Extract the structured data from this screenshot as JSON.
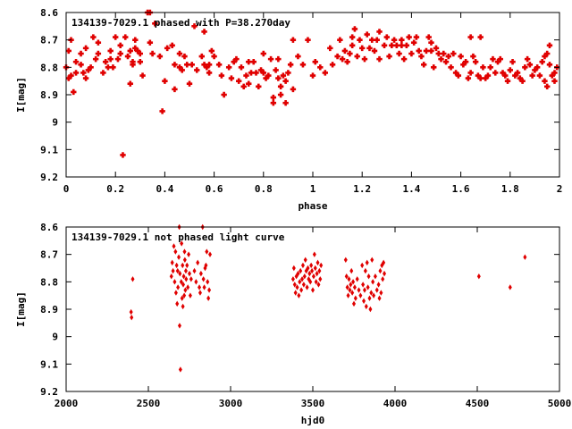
{
  "chart_data": [
    {
      "type": "scatter",
      "title": "134139-7029.1 phased with P=38.270day",
      "xlabel": "phase",
      "ylabel": "I[mag]",
      "xlim": [
        0,
        2
      ],
      "ylim": [
        8.6,
        9.2
      ],
      "y_inverted": true,
      "x_ticks": [
        "0",
        "0.2",
        "0.4",
        "0.6",
        "0.8",
        "1",
        "1.2",
        "1.4",
        "1.6",
        "1.8",
        "2"
      ],
      "y_ticks": [
        "8.6",
        "8.7",
        "8.8",
        "8.9",
        "9",
        "9.1",
        "9.2"
      ],
      "marker": "cross",
      "color": "#e00000",
      "grid": false,
      "points": [
        [
          0.0,
          8.8
        ],
        [
          0.01,
          8.84
        ],
        [
          0.01,
          8.74
        ],
        [
          0.02,
          8.7
        ],
        [
          0.02,
          8.83
        ],
        [
          0.03,
          8.89
        ],
        [
          0.04,
          8.82
        ],
        [
          0.04,
          8.78
        ],
        [
          0.06,
          8.75
        ],
        [
          0.06,
          8.79
        ],
        [
          0.07,
          8.82
        ],
        [
          0.08,
          8.73
        ],
        [
          0.08,
          8.84
        ],
        [
          0.09,
          8.81
        ],
        [
          0.1,
          8.8
        ],
        [
          0.11,
          8.69
        ],
        [
          0.12,
          8.77
        ],
        [
          0.13,
          8.75
        ],
        [
          0.13,
          8.71
        ],
        [
          0.15,
          8.82
        ],
        [
          0.16,
          8.78
        ],
        [
          0.17,
          8.8
        ],
        [
          0.18,
          8.77
        ],
        [
          0.19,
          8.8
        ],
        [
          0.18,
          8.74
        ],
        [
          0.2,
          8.69
        ],
        [
          0.21,
          8.77
        ],
        [
          0.22,
          8.75
        ],
        [
          0.22,
          8.72
        ],
        [
          0.23,
          9.12
        ],
        [
          0.24,
          8.69
        ],
        [
          0.25,
          8.76
        ],
        [
          0.26,
          8.74
        ],
        [
          0.27,
          8.78
        ],
        [
          0.26,
          8.86
        ],
        [
          0.27,
          8.79
        ],
        [
          0.28,
          8.73
        ],
        [
          0.29,
          8.74
        ],
        [
          0.3,
          8.78
        ],
        [
          0.28,
          8.7
        ],
        [
          0.3,
          8.75
        ],
        [
          0.31,
          8.83
        ],
        [
          0.33,
          8.6
        ],
        [
          0.34,
          8.6
        ],
        [
          0.34,
          8.71
        ],
        [
          0.35,
          8.75
        ],
        [
          0.36,
          8.64
        ],
        [
          0.38,
          8.76
        ],
        [
          0.39,
          8.96
        ],
        [
          0.4,
          8.85
        ],
        [
          0.41,
          8.73
        ],
        [
          0.43,
          8.72
        ],
        [
          0.44,
          8.79
        ],
        [
          0.44,
          8.88
        ],
        [
          0.46,
          8.75
        ],
        [
          0.46,
          8.8
        ],
        [
          0.47,
          8.81
        ],
        [
          0.48,
          8.76
        ],
        [
          0.49,
          8.79
        ],
        [
          0.5,
          8.86
        ],
        [
          0.51,
          8.79
        ],
        [
          0.52,
          8.65
        ],
        [
          0.53,
          8.81
        ],
        [
          0.55,
          8.76
        ],
        [
          0.56,
          8.67
        ],
        [
          0.56,
          8.79
        ],
        [
          0.57,
          8.8
        ],
        [
          0.58,
          8.79
        ],
        [
          0.58,
          8.82
        ],
        [
          0.59,
          8.74
        ],
        [
          0.6,
          8.76
        ],
        [
          0.62,
          8.79
        ],
        [
          0.63,
          8.83
        ],
        [
          0.64,
          8.9
        ],
        [
          0.66,
          8.8
        ],
        [
          0.67,
          8.84
        ],
        [
          0.68,
          8.78
        ],
        [
          0.69,
          8.77
        ],
        [
          0.7,
          8.85
        ],
        [
          0.71,
          8.8
        ],
        [
          0.72,
          8.87
        ],
        [
          0.73,
          8.83
        ],
        [
          0.74,
          8.86
        ],
        [
          0.74,
          8.78
        ],
        [
          0.75,
          8.82
        ],
        [
          0.76,
          8.78
        ],
        [
          0.77,
          8.82
        ],
        [
          0.78,
          8.87
        ],
        [
          0.79,
          8.81
        ],
        [
          0.8,
          8.82
        ],
        [
          0.8,
          8.75
        ],
        [
          0.81,
          8.84
        ],
        [
          0.82,
          8.83
        ],
        [
          0.83,
          8.77
        ],
        [
          0.84,
          8.91
        ],
        [
          0.84,
          8.93
        ],
        [
          0.85,
          8.81
        ],
        [
          0.86,
          8.77
        ],
        [
          0.86,
          8.84
        ],
        [
          0.87,
          8.9
        ],
        [
          0.87,
          8.87
        ],
        [
          0.88,
          8.83
        ],
        [
          0.89,
          8.85
        ],
        [
          0.89,
          8.93
        ],
        [
          0.9,
          8.82
        ],
        [
          0.91,
          8.79
        ],
        [
          0.92,
          8.88
        ],
        [
          0.92,
          8.7
        ],
        [
          0.94,
          8.76
        ],
        [
          0.96,
          8.79
        ],
        [
          0.98,
          8.7
        ],
        [
          1.0,
          8.83
        ],
        [
          1.01,
          8.78
        ],
        [
          1.03,
          8.8
        ],
        [
          1.05,
          8.82
        ],
        [
          1.07,
          8.73
        ],
        [
          1.08,
          8.79
        ],
        [
          1.1,
          8.76
        ],
        [
          1.11,
          8.7
        ],
        [
          1.12,
          8.77
        ],
        [
          1.13,
          8.74
        ],
        [
          1.14,
          8.78
        ],
        [
          1.15,
          8.75
        ],
        [
          1.16,
          8.72
        ],
        [
          1.16,
          8.69
        ],
        [
          1.17,
          8.66
        ],
        [
          1.18,
          8.76
        ],
        [
          1.19,
          8.7
        ],
        [
          1.2,
          8.73
        ],
        [
          1.21,
          8.77
        ],
        [
          1.22,
          8.68
        ],
        [
          1.23,
          8.73
        ],
        [
          1.24,
          8.7
        ],
        [
          1.25,
          8.74
        ],
        [
          1.26,
          8.7
        ],
        [
          1.27,
          8.67
        ],
        [
          1.27,
          8.77
        ],
        [
          1.29,
          8.72
        ],
        [
          1.3,
          8.69
        ],
        [
          1.31,
          8.76
        ],
        [
          1.32,
          8.72
        ],
        [
          1.33,
          8.7
        ],
        [
          1.34,
          8.72
        ],
        [
          1.35,
          8.75
        ],
        [
          1.36,
          8.7
        ],
        [
          1.36,
          8.72
        ],
        [
          1.37,
          8.77
        ],
        [
          1.38,
          8.72
        ],
        [
          1.39,
          8.69
        ],
        [
          1.4,
          8.75
        ],
        [
          1.41,
          8.71
        ],
        [
          1.42,
          8.69
        ],
        [
          1.43,
          8.74
        ],
        [
          1.44,
          8.76
        ],
        [
          1.45,
          8.79
        ],
        [
          1.46,
          8.74
        ],
        [
          1.47,
          8.69
        ],
        [
          1.48,
          8.71
        ],
        [
          1.48,
          8.74
        ],
        [
          1.49,
          8.8
        ],
        [
          1.5,
          8.73
        ],
        [
          1.51,
          8.75
        ],
        [
          1.52,
          8.77
        ],
        [
          1.53,
          8.75
        ],
        [
          1.54,
          8.78
        ],
        [
          1.55,
          8.76
        ],
        [
          1.56,
          8.8
        ],
        [
          1.57,
          8.75
        ],
        [
          1.58,
          8.82
        ],
        [
          1.59,
          8.83
        ],
        [
          1.6,
          8.76
        ],
        [
          1.61,
          8.79
        ],
        [
          1.62,
          8.78
        ],
        [
          1.63,
          8.84
        ],
        [
          1.64,
          8.69
        ],
        [
          1.64,
          8.82
        ],
        [
          1.65,
          8.76
        ],
        [
          1.66,
          8.78
        ],
        [
          1.67,
          8.83
        ],
        [
          1.68,
          8.69
        ],
        [
          1.68,
          8.84
        ],
        [
          1.69,
          8.8
        ],
        [
          1.7,
          8.84
        ],
        [
          1.71,
          8.83
        ],
        [
          1.72,
          8.8
        ],
        [
          1.73,
          8.77
        ],
        [
          1.74,
          8.82
        ],
        [
          1.75,
          8.78
        ],
        [
          1.76,
          8.77
        ],
        [
          1.77,
          8.82
        ],
        [
          1.78,
          8.83
        ],
        [
          1.79,
          8.85
        ],
        [
          1.8,
          8.81
        ],
        [
          1.81,
          8.78
        ],
        [
          1.82,
          8.83
        ],
        [
          1.83,
          8.82
        ],
        [
          1.84,
          8.84
        ],
        [
          1.85,
          8.85
        ],
        [
          1.86,
          8.8
        ],
        [
          1.87,
          8.77
        ],
        [
          1.88,
          8.79
        ],
        [
          1.89,
          8.83
        ],
        [
          1.9,
          8.81
        ],
        [
          1.91,
          8.8
        ],
        [
          1.92,
          8.83
        ],
        [
          1.93,
          8.78
        ],
        [
          1.94,
          8.76
        ],
        [
          1.94,
          8.85
        ],
        [
          1.95,
          8.87
        ],
        [
          1.95,
          8.75
        ],
        [
          1.96,
          8.79
        ],
        [
          1.96,
          8.72
        ],
        [
          1.97,
          8.83
        ],
        [
          1.98,
          8.85
        ],
        [
          1.98,
          8.82
        ],
        [
          1.99,
          8.8
        ]
      ]
    },
    {
      "type": "scatter",
      "title": "134139-7029.1 not phased light curve",
      "xlabel": "hjd0",
      "ylabel": "I[mag]",
      "xlim": [
        2000,
        5000
      ],
      "ylim": [
        8.6,
        9.2
      ],
      "y_inverted": true,
      "x_ticks": [
        "2000",
        "2500",
        "3000",
        "3500",
        "4000",
        "4500",
        "5000"
      ],
      "y_ticks": [
        "8.6",
        "8.7",
        "8.8",
        "8.9",
        "9",
        "9.1",
        "9.2"
      ],
      "marker": "diamond",
      "color": "#e00000",
      "grid": false,
      "points": [
        [
          2395,
          8.91
        ],
        [
          2398,
          8.93
        ],
        [
          2405,
          8.79
        ],
        [
          2640,
          8.78
        ],
        [
          2645,
          8.73
        ],
        [
          2650,
          8.76
        ],
        [
          2655,
          8.67
        ],
        [
          2660,
          8.8
        ],
        [
          2665,
          8.69
        ],
        [
          2668,
          8.84
        ],
        [
          2672,
          8.74
        ],
        [
          2675,
          8.88
        ],
        [
          2678,
          8.76
        ],
        [
          2680,
          8.82
        ],
        [
          2685,
          8.71
        ],
        [
          2688,
          8.6
        ],
        [
          2690,
          8.96
        ],
        [
          2692,
          8.77
        ],
        [
          2695,
          9.12
        ],
        [
          2700,
          8.8
        ],
        [
          2702,
          8.66
        ],
        [
          2705,
          8.86
        ],
        [
          2708,
          8.74
        ],
        [
          2710,
          8.89
        ],
        [
          2712,
          8.81
        ],
        [
          2715,
          8.78
        ],
        [
          2718,
          8.85
        ],
        [
          2720,
          8.69
        ],
        [
          2722,
          8.72
        ],
        [
          2725,
          8.83
        ],
        [
          2728,
          8.76
        ],
        [
          2730,
          8.79
        ],
        [
          2735,
          8.74
        ],
        [
          2740,
          8.82
        ],
        [
          2745,
          8.7
        ],
        [
          2750,
          8.77
        ],
        [
          2755,
          8.85
        ],
        [
          2760,
          8.79
        ],
        [
          2780,
          8.76
        ],
        [
          2790,
          8.8
        ],
        [
          2800,
          8.73
        ],
        [
          2810,
          8.82
        ],
        [
          2815,
          8.84
        ],
        [
          2820,
          8.77
        ],
        [
          2830,
          8.6
        ],
        [
          2835,
          8.79
        ],
        [
          2840,
          8.82
        ],
        [
          2845,
          8.75
        ],
        [
          2850,
          8.74
        ],
        [
          2855,
          8.69
        ],
        [
          2860,
          8.8
        ],
        [
          2865,
          8.86
        ],
        [
          2870,
          8.83
        ],
        [
          2875,
          8.7
        ],
        [
          3380,
          8.79
        ],
        [
          3385,
          8.75
        ],
        [
          3390,
          8.81
        ],
        [
          3395,
          8.84
        ],
        [
          3400,
          8.78
        ],
        [
          3405,
          8.82
        ],
        [
          3410,
          8.77
        ],
        [
          3415,
          8.85
        ],
        [
          3420,
          8.8
        ],
        [
          3425,
          8.76
        ],
        [
          3430,
          8.83
        ],
        [
          3435,
          8.79
        ],
        [
          3440,
          8.74
        ],
        [
          3445,
          8.81
        ],
        [
          3450,
          8.78
        ],
        [
          3455,
          8.72
        ],
        [
          3460,
          8.76
        ],
        [
          3465,
          8.82
        ],
        [
          3470,
          8.75
        ],
        [
          3475,
          8.79
        ],
        [
          3480,
          8.77
        ],
        [
          3485,
          8.8
        ],
        [
          3490,
          8.74
        ],
        [
          3495,
          8.76
        ],
        [
          3500,
          8.83
        ],
        [
          3505,
          8.78
        ],
        [
          3510,
          8.7
        ],
        [
          3515,
          8.75
        ],
        [
          3520,
          8.8
        ],
        [
          3525,
          8.77
        ],
        [
          3530,
          8.73
        ],
        [
          3535,
          8.81
        ],
        [
          3540,
          8.76
        ],
        [
          3545,
          8.79
        ],
        [
          3550,
          8.74
        ],
        [
          3700,
          8.72
        ],
        [
          3705,
          8.78
        ],
        [
          3710,
          8.82
        ],
        [
          3715,
          8.85
        ],
        [
          3720,
          8.79
        ],
        [
          3725,
          8.83
        ],
        [
          3730,
          8.81
        ],
        [
          3735,
          8.76
        ],
        [
          3740,
          8.84
        ],
        [
          3745,
          8.8
        ],
        [
          3750,
          8.88
        ],
        [
          3755,
          8.82
        ],
        [
          3760,
          8.86
        ],
        [
          3770,
          8.79
        ],
        [
          3780,
          8.83
        ],
        [
          3790,
          8.85
        ],
        [
          3800,
          8.74
        ],
        [
          3805,
          8.81
        ],
        [
          3810,
          8.87
        ],
        [
          3815,
          8.83
        ],
        [
          3820,
          8.76
        ],
        [
          3825,
          8.89
        ],
        [
          3830,
          8.73
        ],
        [
          3835,
          8.82
        ],
        [
          3840,
          8.78
        ],
        [
          3845,
          8.86
        ],
        [
          3850,
          8.9
        ],
        [
          3855,
          8.84
        ],
        [
          3860,
          8.72
        ],
        [
          3865,
          8.8
        ],
        [
          3870,
          8.85
        ],
        [
          3880,
          8.78
        ],
        [
          3890,
          8.83
        ],
        [
          3900,
          8.81
        ],
        [
          3905,
          8.86
        ],
        [
          3910,
          8.76
        ],
        [
          3915,
          8.84
        ],
        [
          3920,
          8.74
        ],
        [
          3925,
          8.79
        ],
        [
          3930,
          8.73
        ],
        [
          3935,
          8.77
        ],
        [
          4510,
          8.78
        ],
        [
          4700,
          8.82
        ],
        [
          4790,
          8.71
        ]
      ]
    }
  ]
}
